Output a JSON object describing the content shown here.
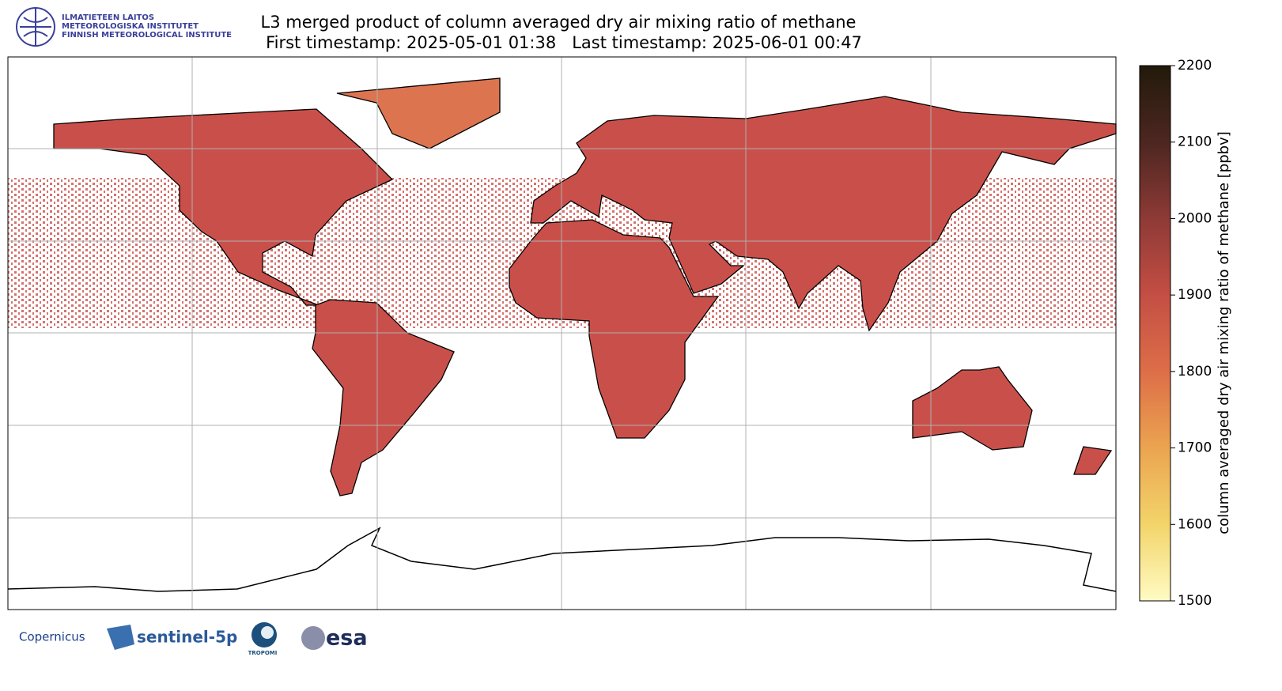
{
  "header": {
    "institute": [
      "ILMATIETEEN LAITOS",
      "METEOROLOGISKA INSTITUTET",
      "FINNISH METEOROLOGICAL INSTITUTE"
    ],
    "title": "L3 merged product of column averaged dry air mixing ratio of methane",
    "subtitle": "First timestamp: 2025-05-01 01:38   Last timestamp: 2025-06-01 00:47"
  },
  "colorbar": {
    "label": "column averaged dry air mixing ratio of methane [ppbv]",
    "lim": [
      1500,
      2200
    ],
    "ticks": [
      1500,
      1600,
      1700,
      1800,
      1900,
      2000,
      2100,
      2200
    ],
    "colors": [
      "#fffbc4",
      "#f3d46a",
      "#eba450",
      "#dd6e48",
      "#c44e44",
      "#8e3a36",
      "#4d2620",
      "#221a0b"
    ]
  },
  "logos": [
    "Copernicus",
    "sentinel-5p",
    "TROPOMI",
    "esa"
  ]
}
